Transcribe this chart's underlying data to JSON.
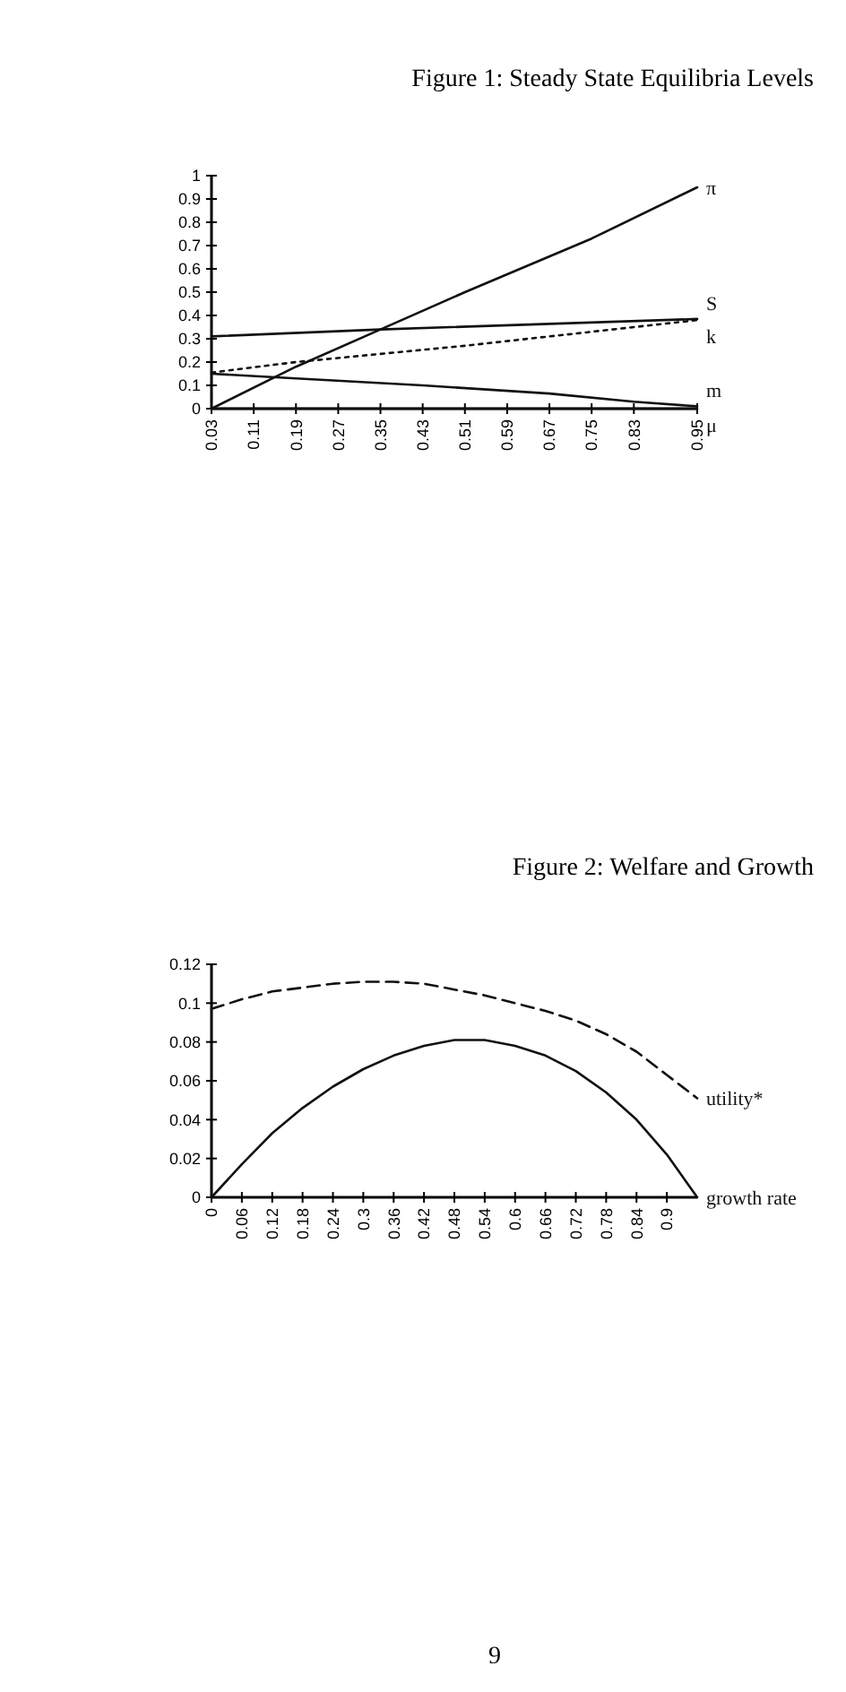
{
  "chart_data": [
    {
      "type": "line",
      "title": "Figure 1: Steady State Equilibria Levels",
      "xlim": [
        0.03,
        0.95
      ],
      "xticks": [
        0.03,
        0.11,
        0.19,
        0.27,
        0.35,
        0.43,
        0.51,
        0.59,
        0.67,
        0.75,
        0.83,
        0.95
      ],
      "ylim": [
        0,
        1
      ],
      "yticks": [
        0,
        0.1,
        0.2,
        0.3,
        0.4,
        0.5,
        0.6,
        0.7,
        0.8,
        0.9,
        1
      ],
      "grid": false,
      "marker": "none",
      "series": [
        {
          "name": "π",
          "color": "#111111",
          "line_style": "solid",
          "x": [
            0.03,
            0.19,
            0.35,
            0.51,
            0.75,
            0.95
          ],
          "values": [
            0,
            0.18,
            0.34,
            0.5,
            0.73,
            0.95
          ]
        },
        {
          "name": "S",
          "color": "#111111",
          "line_style": "solid",
          "x": [
            0.03,
            0.35,
            0.95
          ],
          "values": [
            0.31,
            0.34,
            0.385
          ]
        },
        {
          "name": "k",
          "color": "#111111",
          "line_style": "dotted",
          "x": [
            0.03,
            0.19,
            0.51,
            0.95
          ],
          "values": [
            0.155,
            0.2,
            0.27,
            0.38
          ]
        },
        {
          "name": "m",
          "color": "#111111",
          "line_style": "solid",
          "x": [
            0.03,
            0.19,
            0.43,
            0.67,
            0.83,
            0.95
          ],
          "values": [
            0.15,
            0.13,
            0.1,
            0.065,
            0.03,
            0.01
          ]
        },
        {
          "name": "μ",
          "color": "#111111",
          "line_style": "solid",
          "x": [
            0.03,
            0.95
          ],
          "values": [
            0,
            0
          ]
        }
      ]
    },
    {
      "type": "line",
      "title": "Figure 2: Welfare and Growth",
      "xlim": [
        0,
        0.96
      ],
      "xticks": [
        0,
        0.06,
        0.12,
        0.18,
        0.24,
        0.3,
        0.36,
        0.42,
        0.48,
        0.54,
        0.6,
        0.66,
        0.72,
        0.78,
        0.84,
        0.9
      ],
      "ylim": [
        0,
        0.12
      ],
      "yticks": [
        0,
        0.02,
        0.04,
        0.06,
        0.08,
        0.1,
        0.12
      ],
      "grid": false,
      "marker": "none",
      "annotations": [
        "9"
      ],
      "series": [
        {
          "name": "utility*",
          "color": "#111111",
          "line_style": "dashed",
          "x": [
            0,
            0.06,
            0.12,
            0.18,
            0.24,
            0.3,
            0.36,
            0.42,
            0.48,
            0.54,
            0.6,
            0.66,
            0.72,
            0.78,
            0.84,
            0.9,
            0.96
          ],
          "values": [
            0.097,
            0.102,
            0.106,
            0.108,
            0.11,
            0.111,
            0.111,
            0.11,
            0.107,
            0.104,
            0.1,
            0.096,
            0.091,
            0.084,
            0.075,
            0.063,
            0.051
          ]
        },
        {
          "name": "growth rate",
          "color": "#111111",
          "line_style": "solid",
          "x": [
            0,
            0.06,
            0.12,
            0.18,
            0.24,
            0.3,
            0.36,
            0.42,
            0.48,
            0.54,
            0.6,
            0.66,
            0.72,
            0.78,
            0.84,
            0.9,
            0.96
          ],
          "values": [
            0,
            0.017,
            0.033,
            0.046,
            0.057,
            0.066,
            0.073,
            0.078,
            0.081,
            0.081,
            0.078,
            0.073,
            0.065,
            0.054,
            0.04,
            0.022,
            0
          ]
        }
      ]
    }
  ]
}
